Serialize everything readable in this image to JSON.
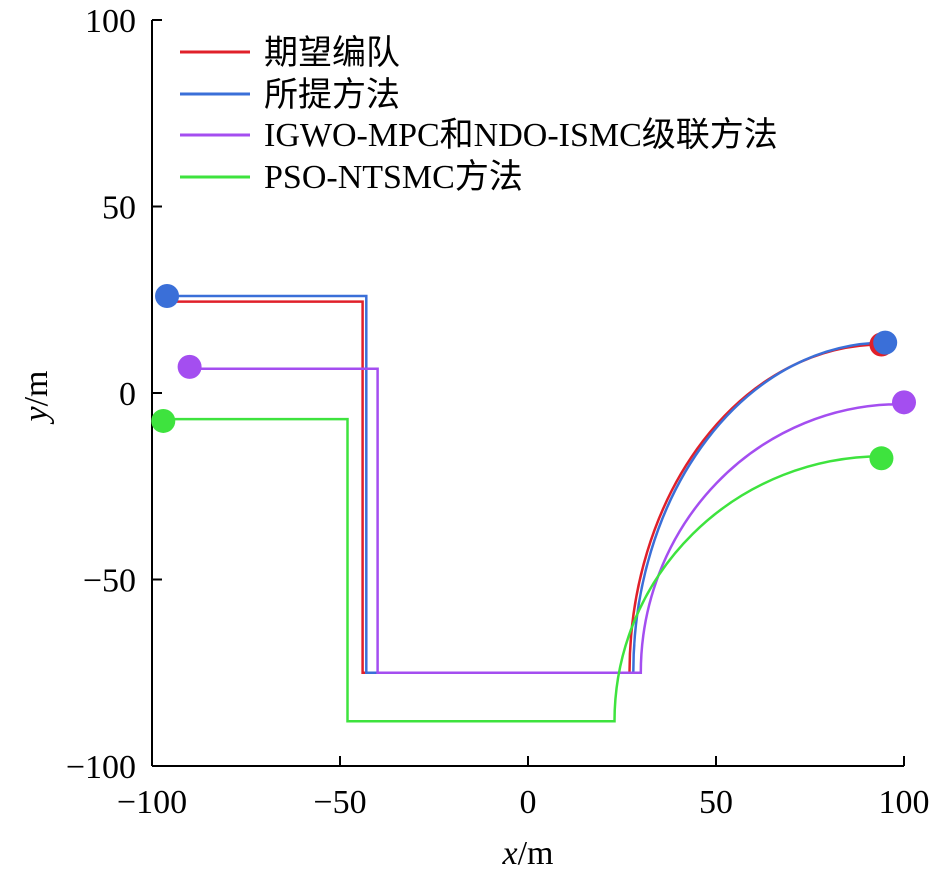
{
  "chart_data": {
    "type": "line",
    "title": "",
    "xlabel": {
      "var": "x",
      "unit": "/m"
    },
    "ylabel": {
      "var": "y",
      "unit": "/m"
    },
    "xlim": [
      -100,
      100
    ],
    "ylim": [
      -100,
      100
    ],
    "xticks": [
      -100,
      -50,
      0,
      50,
      100
    ],
    "yticks": [
      -100,
      -50,
      0,
      50,
      100
    ],
    "xtick_labels": [
      "−100",
      "−50",
      "0",
      "50",
      "100"
    ],
    "ytick_labels": [
      "−100",
      "−50",
      "0",
      "50",
      "100"
    ],
    "grid": false,
    "legend_position": "top-left",
    "series": [
      {
        "name": "期望编队",
        "color": "#e0202a",
        "segments": [
          {
            "kind": "line",
            "points": [
              [
                -94,
                24.5
              ],
              [
                -44,
                24.5
              ],
              [
                -44,
                -75
              ],
              [
                27,
                -75
              ]
            ]
          },
          {
            "kind": "quarter-arc",
            "from": [
              27,
              -75
            ],
            "to": [
              94,
              13
            ]
          }
        ],
        "end_marker": [
          94,
          13
        ]
      },
      {
        "name": "所提方法",
        "color": "#3a6fd8",
        "segments": [
          {
            "kind": "line",
            "points": [
              [
                -94,
                26
              ],
              [
                -43,
                26
              ],
              [
                -43,
                -75
              ],
              [
                28,
                -75
              ]
            ]
          },
          {
            "kind": "quarter-arc",
            "from": [
              28,
              -75
            ],
            "to": [
              95,
              13.5
            ]
          }
        ],
        "start_marker": [
          -96,
          26
        ],
        "end_marker": [
          95,
          13.5
        ]
      },
      {
        "name": "IGWO-MPC和NDO-ISMC级联方法",
        "color": "#a44ef0",
        "segments": [
          {
            "kind": "line",
            "points": [
              [
                -89,
                6.5
              ],
              [
                -40,
                6.5
              ],
              [
                -40,
                -75
              ],
              [
                30,
                -75
              ]
            ]
          },
          {
            "kind": "quarter-arc",
            "from": [
              30,
              -75
            ],
            "to": [
              99,
              -3
            ]
          }
        ],
        "start_marker": [
          -90,
          7
        ],
        "end_marker": [
          100,
          -2.5
        ]
      },
      {
        "name": "PSO-NTSMC方法",
        "color": "#3ee33e",
        "segments": [
          {
            "kind": "line",
            "points": [
              [
                -96,
                -7
              ],
              [
                -48,
                -7
              ],
              [
                -48,
                -88
              ],
              [
                23,
                -88
              ]
            ]
          },
          {
            "kind": "quarter-arc",
            "from": [
              23,
              -88
            ],
            "to": [
              94,
              -17
            ]
          }
        ],
        "start_marker": [
          -97,
          -7.5
        ],
        "end_marker": [
          94,
          -17.5
        ]
      }
    ]
  }
}
